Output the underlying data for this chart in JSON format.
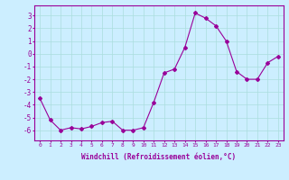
{
  "x": [
    0,
    1,
    2,
    3,
    4,
    5,
    6,
    7,
    8,
    9,
    10,
    11,
    12,
    13,
    14,
    15,
    16,
    17,
    18,
    19,
    20,
    21,
    22,
    23
  ],
  "y": [
    -3.5,
    -5.2,
    -6.0,
    -5.8,
    -5.9,
    -5.7,
    -5.4,
    -5.3,
    -6.0,
    -6.0,
    -5.8,
    -3.8,
    -1.5,
    -1.2,
    0.5,
    3.2,
    2.8,
    2.2,
    1.0,
    -1.4,
    -2.0,
    -2.0,
    -0.7,
    -0.2
  ],
  "line_color": "#990099",
  "marker": "D",
  "markersize": 2,
  "bg_color": "#cceeff",
  "grid_color": "#aadddd",
  "xlabel": "Windchill (Refroidissement éolien,°C)",
  "ylabel_ticks": [
    3,
    2,
    1,
    0,
    -1,
    -2,
    -3,
    -4,
    -5,
    -6
  ],
  "ylim": [
    -6.8,
    3.8
  ],
  "xlim": [
    -0.5,
    23.5
  ],
  "xtick_fontsize": 4.5,
  "ytick_fontsize": 5.5,
  "xlabel_fontsize": 5.5
}
